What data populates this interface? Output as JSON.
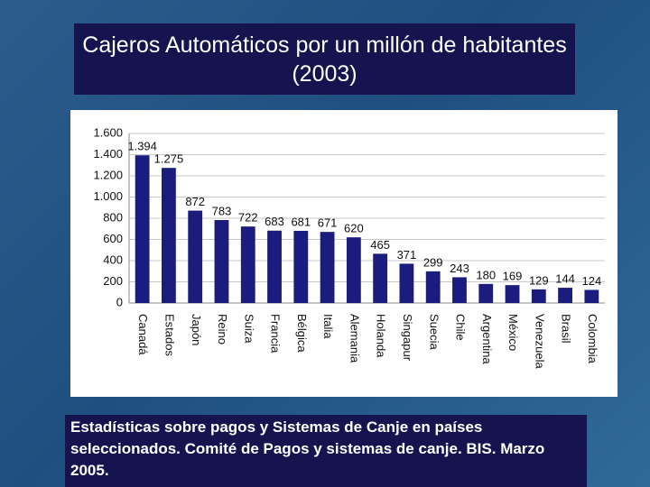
{
  "slide": {
    "title": "Cajeros Automáticos por un millón de habitantes (2003)",
    "caption": "Estadísticas sobre pagos y Sistemas de Canje en países seleccionados. Comité de Pagos y sistemas de canje. BIS. Marzo 2005."
  },
  "chart_data": {
    "type": "bar",
    "categories": [
      "Canadá",
      "Estados",
      "Japón",
      "Reino",
      "Suiza",
      "Francia",
      "Bélgica",
      "Italia",
      "Alemania",
      "Holanda",
      "Singapur",
      "Suecia",
      "Chile",
      "Argentina",
      "México",
      "Venezuela",
      "Brasil",
      "Colombia"
    ],
    "values": [
      1394,
      1275,
      872,
      783,
      722,
      683,
      681,
      671,
      620,
      465,
      371,
      299,
      243,
      180,
      169,
      129,
      144,
      124
    ],
    "value_labels": [
      "1.394",
      "1.275",
      "872",
      "783",
      "722",
      "683",
      "681",
      "671",
      "620",
      "465",
      "371",
      "299",
      "243",
      "180",
      "169",
      "129",
      "144",
      "124"
    ],
    "color": "#1c1c7e",
    "ylim": [
      0,
      1600
    ],
    "yticks": [
      0,
      200,
      400,
      600,
      800,
      {
        "value": 1000,
        "label": "1.000"
      },
      {
        "value": 1200,
        "label": "1.200"
      },
      {
        "value": 1400,
        "label": "1.400"
      },
      {
        "value": 1600,
        "label": "1.600"
      }
    ],
    "grid": true
  }
}
